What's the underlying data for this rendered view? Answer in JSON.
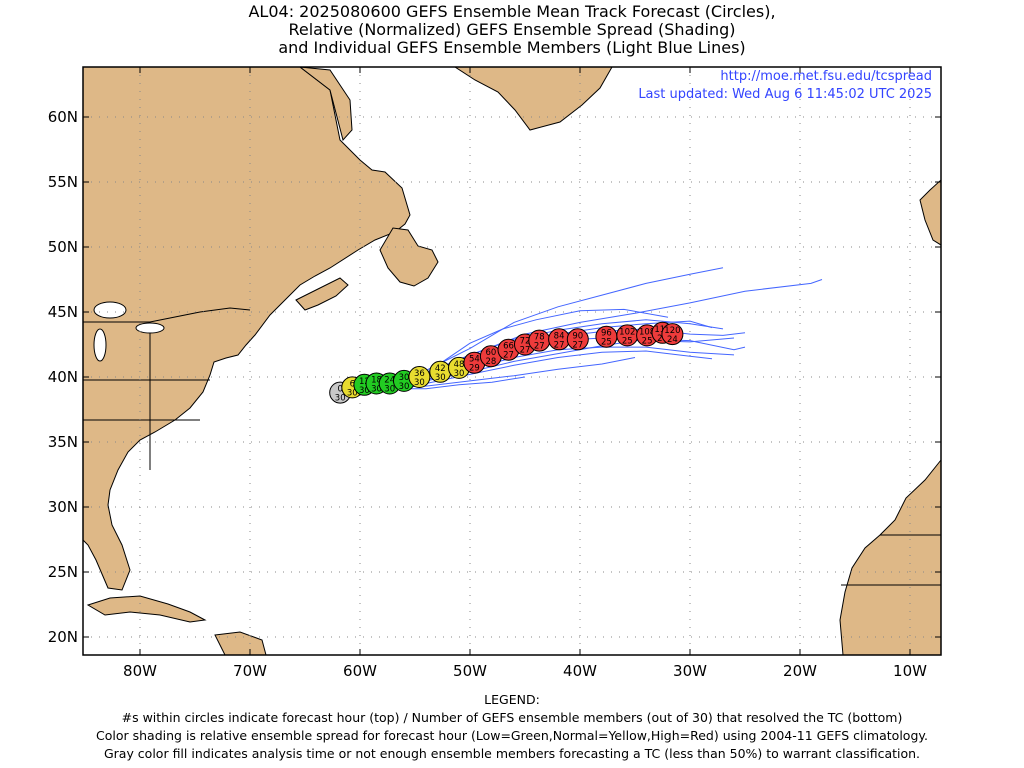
{
  "title": {
    "line1": "AL04: 2025080600 GEFS Ensemble Mean Track Forecast (Circles),",
    "line2": "Relative (Normalized) GEFS Ensemble Spread (Shading)",
    "line3": "and Individual GEFS Ensemble Members (Light Blue Lines)"
  },
  "source": {
    "url": "http://moe.met.fsu.edu/tcspread",
    "updated": "Last updated: Wed Aug 6 11:45:02 UTC 2025"
  },
  "axes": {
    "lat_labels": [
      "60N",
      "55N",
      "50N",
      "45N",
      "40N",
      "35N",
      "30N",
      "25N",
      "20N"
    ],
    "lat_values": [
      60,
      55,
      50,
      45,
      40,
      35,
      30,
      25,
      20
    ],
    "lon_labels": [
      "80W",
      "70W",
      "60W",
      "50W",
      "40W",
      "30W",
      "20W",
      "10W"
    ],
    "lon_values": [
      -80,
      -70,
      -60,
      -50,
      -40,
      -30,
      -20,
      -10
    ],
    "lon_range": [
      -85,
      -8.5
    ],
    "lat_range": [
      18.5,
      64
    ],
    "gridlines": "dotted"
  },
  "colors": {
    "land": "#deb887",
    "ocean": "#ffffff",
    "member_lines": "#4466ff",
    "gray": "#c8c8c8",
    "green": "#22cc22",
    "yellow": "#e8dc30",
    "red": "#ee3b3b"
  },
  "track": [
    {
      "hour": "0",
      "members": "30",
      "lon": -61.8,
      "lat": 38.8,
      "color": "gray"
    },
    {
      "hour": "6",
      "members": "30",
      "lon": -60.7,
      "lat": 39.2,
      "color": "yellow"
    },
    {
      "hour": "12",
      "members": "30",
      "lon": -59.6,
      "lat": 39.4,
      "color": "green"
    },
    {
      "hour": "18",
      "members": "30",
      "lon": -58.5,
      "lat": 39.5,
      "color": "green"
    },
    {
      "hour": "24",
      "members": "30",
      "lon": -57.3,
      "lat": 39.5,
      "color": "green"
    },
    {
      "hour": "30",
      "members": "30",
      "lon": -56.0,
      "lat": 39.7,
      "color": "green"
    },
    {
      "hour": "36",
      "members": "30",
      "lon": -54.6,
      "lat": 40.0,
      "color": "yellow"
    },
    {
      "hour": "42",
      "members": "30",
      "lon": -52.7,
      "lat": 40.4,
      "color": "yellow"
    },
    {
      "hour": "48",
      "members": "30",
      "lon": -51.0,
      "lat": 40.7,
      "color": "yellow"
    },
    {
      "hour": "54",
      "members": "29",
      "lon": -49.6,
      "lat": 41.1,
      "color": "red"
    },
    {
      "hour": "60",
      "members": "28",
      "lon": -48.1,
      "lat": 41.6,
      "color": "red"
    },
    {
      "hour": "66",
      "members": "27",
      "lon": -46.5,
      "lat": 42.1,
      "color": "red"
    },
    {
      "hour": "72",
      "members": "27",
      "lon": -45.0,
      "lat": 42.5,
      "color": "red"
    },
    {
      "hour": "78",
      "members": "27",
      "lon": -43.7,
      "lat": 42.8,
      "color": "red"
    },
    {
      "hour": "84",
      "members": "27",
      "lon": -41.9,
      "lat": 42.9,
      "color": "red"
    },
    {
      "hour": "90",
      "members": "27",
      "lon": -40.2,
      "lat": 42.9,
      "color": "red"
    },
    {
      "hour": "96",
      "members": "25",
      "lon": -37.6,
      "lat": 43.1,
      "color": "red"
    },
    {
      "hour": "102",
      "members": "25",
      "lon": -35.7,
      "lat": 43.2,
      "color": "red"
    },
    {
      "hour": "108",
      "members": "25",
      "lon": -33.9,
      "lat": 43.2,
      "color": "red"
    },
    {
      "hour": "114",
      "members": "24",
      "lon": -32.5,
      "lat": 43.4,
      "color": "red"
    },
    {
      "hour": "120",
      "members": "24",
      "lon": -31.6,
      "lat": 43.3,
      "color": "red"
    }
  ],
  "members": [
    [
      [
        -58,
        39.6
      ],
      [
        -54,
        40.5
      ],
      [
        -50,
        42.2
      ],
      [
        -46,
        44.2
      ],
      [
        -42,
        45.4
      ],
      [
        -38,
        46.3
      ],
      [
        -34,
        47.2
      ],
      [
        -30,
        47.9
      ],
      [
        -27,
        48.4
      ]
    ],
    [
      [
        -58,
        39.5
      ],
      [
        -53,
        40.6
      ],
      [
        -49,
        42.0
      ],
      [
        -45,
        43.3
      ],
      [
        -40,
        44.2
      ],
      [
        -35,
        44.9
      ],
      [
        -30,
        45.7
      ],
      [
        -25,
        46.6
      ],
      [
        -19,
        47.2
      ],
      [
        -18,
        47.5
      ]
    ],
    [
      [
        -58,
        39.5
      ],
      [
        -54,
        40.3
      ],
      [
        -50,
        41.7
      ],
      [
        -46,
        42.9
      ],
      [
        -42,
        43.6
      ],
      [
        -38,
        44.1
      ],
      [
        -34,
        44.4
      ],
      [
        -30,
        44.1
      ],
      [
        -27,
        43.7
      ]
    ],
    [
      [
        -58,
        39.4
      ],
      [
        -54,
        40.1
      ],
      [
        -50,
        41.3
      ],
      [
        -46,
        42.4
      ],
      [
        -42,
        43.1
      ],
      [
        -38,
        43.5
      ],
      [
        -34,
        43.7
      ],
      [
        -30,
        43.3
      ],
      [
        -27,
        43.2
      ],
      [
        -25,
        43.4
      ]
    ],
    [
      [
        -58,
        39.4
      ],
      [
        -54,
        40.0
      ],
      [
        -50,
        41.0
      ],
      [
        -46,
        42.1
      ],
      [
        -42,
        42.8
      ],
      [
        -38,
        43.0
      ],
      [
        -34,
        42.8
      ],
      [
        -30,
        42.7
      ],
      [
        -26,
        43.0
      ]
    ],
    [
      [
        -58,
        39.3
      ],
      [
        -54,
        39.8
      ],
      [
        -50,
        40.6
      ],
      [
        -46,
        41.5
      ],
      [
        -42,
        42.1
      ],
      [
        -38,
        42.3
      ],
      [
        -34,
        42.3
      ],
      [
        -30,
        41.9
      ],
      [
        -26,
        41.7
      ]
    ],
    [
      [
        -58,
        39.2
      ],
      [
        -54,
        39.5
      ],
      [
        -50,
        40.2
      ],
      [
        -46,
        40.9
      ],
      [
        -42,
        41.5
      ],
      [
        -38,
        41.9
      ],
      [
        -34,
        42.0
      ],
      [
        -30,
        41.6
      ],
      [
        -28,
        41.4
      ]
    ],
    [
      [
        -58,
        39.2
      ],
      [
        -54,
        39.3
      ],
      [
        -50,
        39.7
      ],
      [
        -46,
        40.1
      ],
      [
        -42,
        40.6
      ],
      [
        -38,
        41.0
      ],
      [
        -35,
        41.5
      ]
    ],
    [
      [
        -58,
        39.1
      ],
      [
        -54,
        39.1
      ],
      [
        -51,
        39.4
      ],
      [
        -48,
        39.6
      ],
      [
        -45,
        40.0
      ]
    ],
    [
      [
        -58,
        39.3
      ],
      [
        -54,
        39.7
      ],
      [
        -50,
        40.4
      ],
      [
        -46,
        41.2
      ],
      [
        -42,
        41.8
      ],
      [
        -38,
        42.4
      ],
      [
        -34,
        42.9
      ],
      [
        -30,
        42.8
      ],
      [
        -26,
        42.1
      ],
      [
        -25,
        42.3
      ]
    ],
    [
      [
        -58,
        39.6
      ],
      [
        -54,
        40.3
      ],
      [
        -50,
        42.6
      ],
      [
        -47,
        43.7
      ],
      [
        -44,
        44.4
      ],
      [
        -40,
        45.1
      ],
      [
        -36,
        45.2
      ],
      [
        -32,
        44.6
      ]
    ],
    [
      [
        -58,
        39.5
      ],
      [
        -54,
        40.2
      ],
      [
        -50,
        41.5
      ],
      [
        -46,
        42.6
      ],
      [
        -42,
        43.3
      ],
      [
        -38,
        43.8
      ],
      [
        -34,
        44.1
      ],
      [
        -30,
        44.3
      ],
      [
        -28,
        43.8
      ]
    ]
  ],
  "legend": {
    "heading": "LEGEND:",
    "line1": "#s within circles indicate forecast hour (top) / Number of GEFS ensemble members (out of 30) that resolved the TC (bottom)",
    "line2": "Color shading is relative ensemble spread for forecast hour (Low=Green,Normal=Yellow,High=Red) using 2004-11 GEFS climatology.",
    "line3": "Gray color fill indicates analysis time or not enough ensemble members forecasting a TC (less than 50%) to warrant classification."
  }
}
